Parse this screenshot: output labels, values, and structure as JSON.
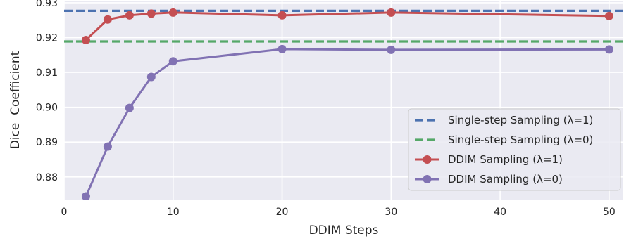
{
  "chart_data": {
    "type": "line",
    "xlabel": "DDIM Steps",
    "ylabel": "Dice  Coefficient",
    "xlim": [
      0,
      51.3
    ],
    "ylim": [
      0.8735,
      0.9306
    ],
    "xticks": [
      0,
      10,
      20,
      30,
      40,
      50
    ],
    "yticks": [
      0.88,
      0.89,
      0.9,
      0.91,
      0.92,
      0.93
    ],
    "xtick_labels": [
      "0",
      "10",
      "20",
      "30",
      "40",
      "50"
    ],
    "ytick_labels": [
      "0.88",
      "0.89",
      "0.90",
      "0.91",
      "0.92",
      "0.93"
    ],
    "grid": true,
    "background": "#eaeaf2",
    "legend_position": "lower-right",
    "hlines": [
      {
        "name": "Single-step Sampling (λ=1)",
        "y": 0.9277,
        "color": "#4c72b0",
        "style": "dashed"
      },
      {
        "name": "Single-step Sampling (λ=0)",
        "y": 0.9189,
        "color": "#55a868",
        "style": "dashed"
      }
    ],
    "series": [
      {
        "name": "DDIM Sampling (λ=1)",
        "color": "#c44e52",
        "x": [
          2,
          4,
          6,
          8,
          10,
          20,
          30,
          50
        ],
        "y": [
          0.9193,
          0.9252,
          0.9264,
          0.9269,
          0.9272,
          0.9264,
          0.9272,
          0.9262
        ]
      },
      {
        "name": "DDIM Sampling (λ=0)",
        "color": "#8172b3",
        "x": [
          2,
          4,
          6,
          8,
          10,
          20,
          30,
          50
        ],
        "y": [
          0.8744,
          0.8887,
          0.8998,
          0.9087,
          0.9132,
          0.9167,
          0.9165,
          0.9166
        ]
      }
    ]
  }
}
